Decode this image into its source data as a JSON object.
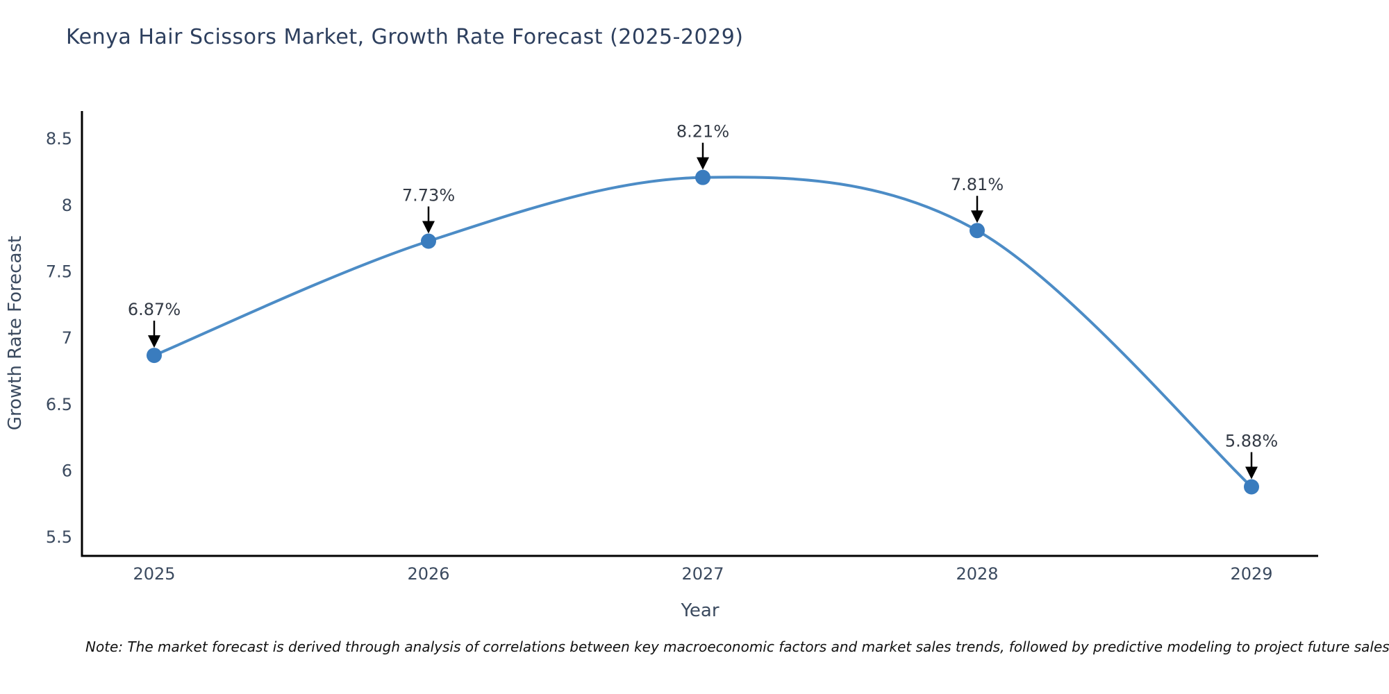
{
  "footnote": "Note: The market forecast is derived through analysis of correlations between key macroeconomic factors and market sales trends, followed by predictive modeling to project future sales",
  "chart_data": {
    "type": "line",
    "title": "Kenya Hair Scissors Market, Growth Rate Forecast (2025-2029)",
    "categories": [
      "2025",
      "2026",
      "2027",
      "2028",
      "2029"
    ],
    "values": [
      6.87,
      7.73,
      8.21,
      7.81,
      5.88
    ],
    "point_labels": [
      "6.87%",
      "7.73%",
      "8.21%",
      "7.81%",
      "5.88%"
    ],
    "xlabel": "Year",
    "ylabel": "Growth Rate Forecast",
    "yticks": [
      5.5,
      6,
      6.5,
      7,
      7.5,
      8,
      8.5
    ],
    "ylim": [
      5.36,
      8.71
    ],
    "grid": false,
    "legend": "none",
    "marker": "circle",
    "annotation_style": "label-with-down-arrow",
    "colors": {
      "line": "#4c8cc6",
      "marker": "#3a7cbe",
      "axis": "#000000",
      "tick_text": "#3b4a5f",
      "annotation_text": "#333a45",
      "arrow": "#000000",
      "title_text": "#2d3f5e"
    }
  }
}
